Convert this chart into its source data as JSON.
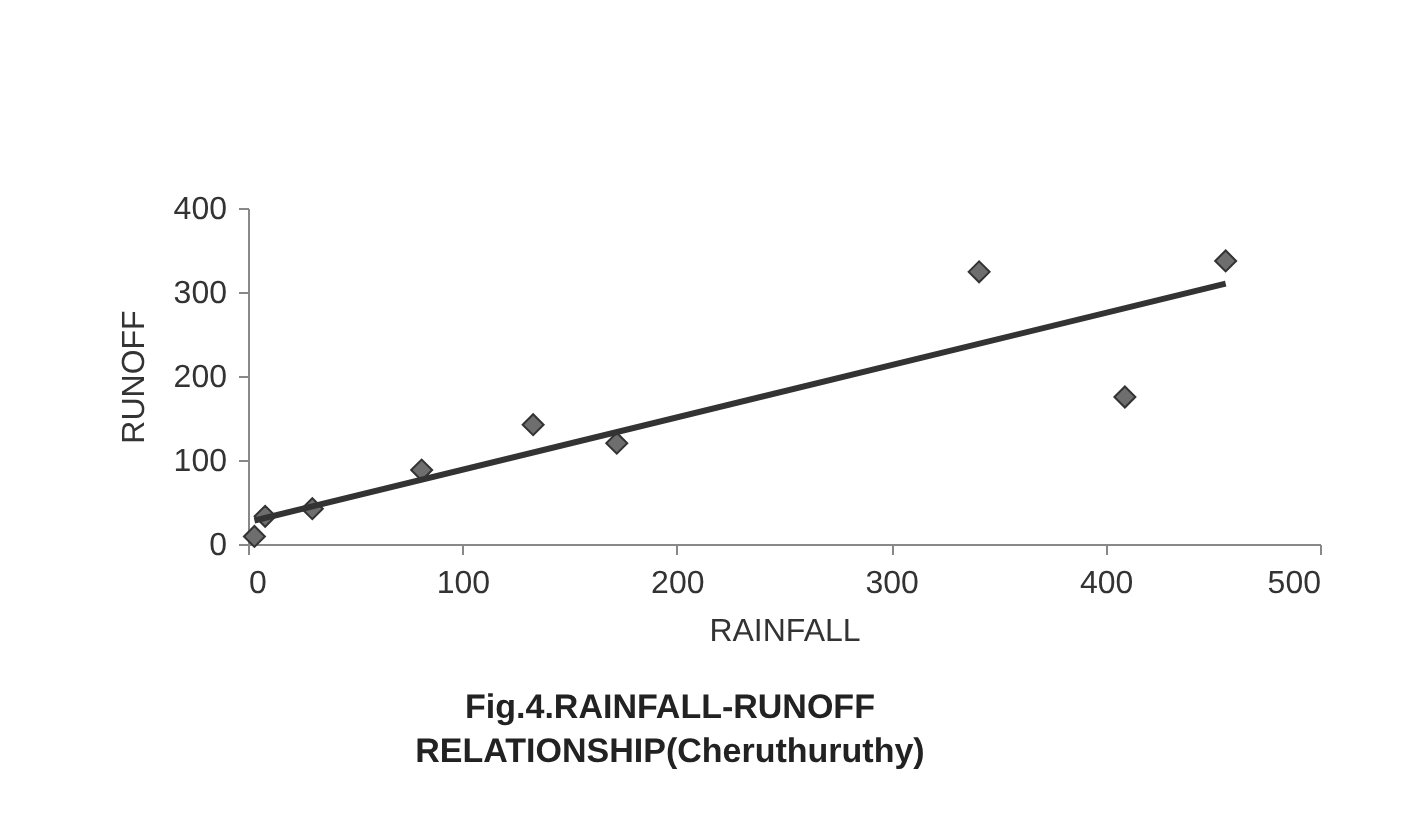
{
  "chart_data": {
    "type": "scatter",
    "title": "Fig.4.RAINFALL-RUNOFF RELATIONSHIP(Cheruthuruthy)",
    "xlabel": "RAINFALL",
    "ylabel": "RUNOFF",
    "xlim": [
      0,
      500
    ],
    "ylim": [
      0,
      400
    ],
    "xticks": [
      0,
      100,
      200,
      300,
      400,
      500
    ],
    "yticks": [
      0,
      100,
      200,
      300,
      400
    ],
    "series": [
      {
        "marker": "diamond",
        "color": "#6e6e6e",
        "x": [
          3,
          8,
          30,
          81,
          133,
          172,
          341,
          409,
          456
        ],
        "values": [
          9,
          33,
          42,
          88,
          142,
          120,
          324,
          175,
          337
        ]
      },
      {
        "type": "line",
        "color": "#333333",
        "x": [
          3,
          456
        ],
        "values": [
          28,
          310
        ]
      }
    ]
  }
}
